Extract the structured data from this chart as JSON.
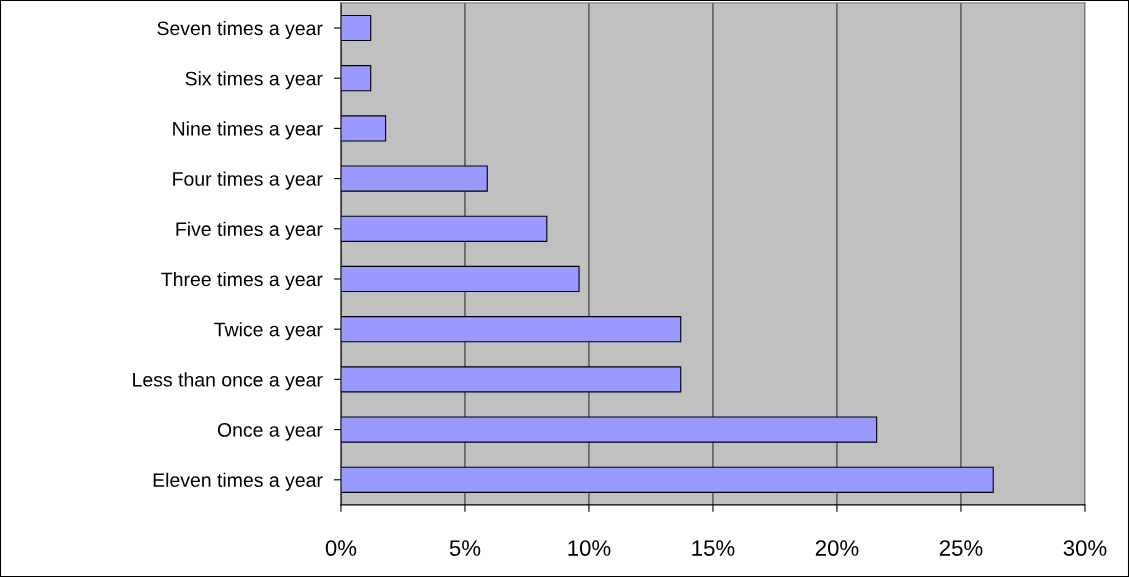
{
  "chart_data": {
    "type": "bar",
    "orientation": "horizontal",
    "categories": [
      "Seven times a year",
      "Six times a year",
      "Nine times a year",
      "Four times a year",
      "Five times a year",
      "Three times a year",
      "Twice a year",
      "Less than once a year",
      "Once a year",
      "Eleven times a year"
    ],
    "values": [
      1.2,
      1.2,
      1.8,
      5.9,
      8.3,
      9.6,
      13.7,
      13.7,
      21.6,
      26.3
    ],
    "color": "#9999ff",
    "xlim": [
      0,
      30
    ],
    "xticks": [
      {
        "value": 0,
        "label": "0%"
      },
      {
        "value": 5,
        "label": "5%"
      },
      {
        "value": 10,
        "label": "10%"
      },
      {
        "value": 15,
        "label": "15%"
      },
      {
        "value": 20,
        "label": "20%"
      },
      {
        "value": 25,
        "label": "25%"
      },
      {
        "value": 30,
        "label": "30%"
      }
    ],
    "grid": "x",
    "legend": false
  }
}
